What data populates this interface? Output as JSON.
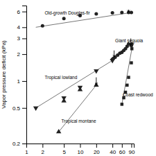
{
  "chart_data": {
    "type": "scatter",
    "ylabel": "Vapor pressure deficit (kPa)",
    "log": true,
    "xlim": [
      1,
      100
    ],
    "ylim": [
      0.2,
      7
    ],
    "xticks": [
      1,
      2,
      5,
      10,
      20,
      40,
      60,
      90
    ],
    "yticks": [
      0.2,
      0.5,
      1,
      2,
      3,
      4,
      6
    ],
    "series": [
      {
        "name": "Old-growth Douglas-fir",
        "color": "#222222",
        "marker": "circle",
        "x": [
          2,
          5,
          10,
          20,
          40,
          60,
          80,
          90
        ],
        "values": [
          4.15,
          5.0,
          5.4,
          5.65,
          5.8,
          5.85,
          5.85,
          5.85
        ],
        "fit": {
          "type": "line",
          "color": "#777777",
          "x": [
            1.5,
            90
          ],
          "values": [
            4.0,
            5.85
          ]
        },
        "arrow": {
          "color": "black",
          "x": 80,
          "tip": 5.85,
          "base": 6.3
        },
        "label_x": 2.2,
        "label_y": 5.55
      },
      {
        "name": "Giant sequoia",
        "color": "#222222",
        "marker": "circle",
        "x": [
          40,
          42,
          45,
          50,
          55,
          60,
          65,
          70,
          75,
          80,
          90,
          92
        ],
        "values": [
          1.75,
          1.8,
          1.85,
          1.95,
          2.05,
          2.1,
          2.2,
          2.3,
          2.45,
          2.6,
          2.5,
          2.6
        ],
        "fit": {
          "type": "line",
          "color": "#777777",
          "x": [
            40,
            90
          ],
          "values": [
            1.75,
            2.55
          ]
        },
        "arrow": {
          "color": "black",
          "x": 43,
          "tip": 1.85,
          "base": 2.2
        },
        "label_x": 45,
        "label_y": 2.7
      },
      {
        "name": "Tropical lowland",
        "color": "#222222",
        "marker": "triangle-down",
        "x": [
          1.5,
          5,
          10,
          20,
          40
        ],
        "values": [
          0.5,
          0.65,
          0.85,
          1.3,
          1.7
        ],
        "fit": {
          "type": "line",
          "color": "#777777",
          "x": [
            1.5,
            40
          ],
          "values": [
            0.5,
            1.7
          ]
        },
        "label_x": 2.2,
        "label_y": 1.05
      },
      {
        "name": "Tropical montane",
        "color": "#222222",
        "marker": "triangle-up",
        "x": [
          4,
          5,
          10,
          20
        ],
        "values": [
          0.27,
          0.6,
          0.8,
          0.9
        ],
        "fit": {
          "type": "line",
          "color": "#777777",
          "x": [
            4,
            20
          ],
          "values": [
            0.27,
            0.9
          ]
        },
        "arrow": {
          "color": "black",
          "x": 20,
          "tip": 0.9,
          "base": 1.1
        },
        "label_x": 4.5,
        "label_y": 0.34
      },
      {
        "name": "Coast redwood",
        "color": "#222222",
        "marker": "square",
        "x": [
          60,
          65,
          70,
          75,
          80,
          90,
          92
        ],
        "values": [
          0.55,
          0.65,
          0.75,
          0.9,
          1.1,
          1.6,
          2.3
        ],
        "fit": {
          "type": "line",
          "color": "#777777",
          "x": [
            60,
            92
          ],
          "values": [
            0.55,
            2.3
          ]
        },
        "arrow": {
          "color": "black",
          "x": 88,
          "tip": 2.5,
          "base": 3.0
        },
        "label_x": 62,
        "label_y": 0.68
      }
    ]
  }
}
